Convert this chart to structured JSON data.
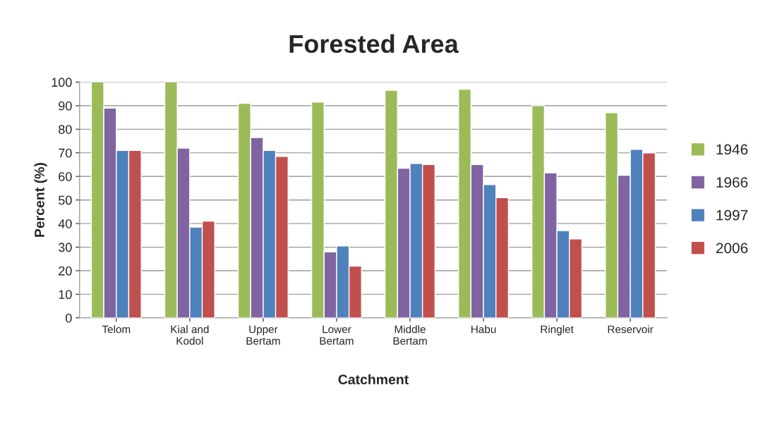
{
  "chart_data": {
    "type": "bar",
    "title": "Forested Area",
    "xlabel": "Catchment",
    "ylabel": "Percent (%)",
    "categories": [
      "Telom",
      "Kial and\nKodol",
      "Upper\nBertam",
      "Lower\nBertam",
      "Middle\nBertam",
      "Habu",
      "Ringlet",
      "Reservoir"
    ],
    "series": [
      {
        "name": "1946",
        "color": "#9bbb59",
        "values": [
          100,
          100,
          91,
          91.5,
          96.5,
          97,
          90,
          87
        ]
      },
      {
        "name": "1966",
        "color": "#8064a2",
        "values": [
          89,
          72,
          76.5,
          28,
          63.5,
          65,
          61.5,
          60.5
        ]
      },
      {
        "name": "1997",
        "color": "#4f81bd",
        "values": [
          71,
          38.5,
          71,
          30.5,
          65.5,
          56.5,
          37,
          71.5
        ]
      },
      {
        "name": "2006",
        "color": "#c0504d",
        "values": [
          71,
          41,
          68.5,
          22,
          65,
          51,
          33.5,
          70
        ]
      }
    ],
    "ylim": [
      0,
      100
    ],
    "yticks": [
      0,
      10,
      20,
      30,
      40,
      50,
      60,
      70,
      80,
      90,
      100
    ],
    "grid": "y",
    "legend": "right"
  }
}
